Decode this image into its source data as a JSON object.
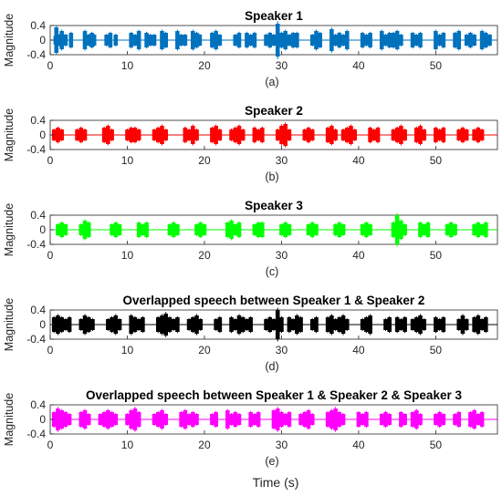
{
  "figure": {
    "shared_xlabel": "Time (s)"
  },
  "chart_data": [
    {
      "type": "line",
      "title": "Speaker 1",
      "ylabel": "Magnitude",
      "caption": "(a)",
      "color": "#0072BD",
      "xlim": [
        0,
        58
      ],
      "ylim": [
        -0.4,
        0.4
      ],
      "xticks": [
        0,
        10,
        20,
        30,
        40,
        50
      ],
      "yticks": [
        0.4,
        0,
        -0.4
      ],
      "ytick_labels": [
        "0.4",
        "0",
        "-0.4"
      ],
      "series": [
        {
          "x": [
            0.7,
            0.8,
            1.2,
            1.5,
            2,
            2.7,
            4.5,
            5,
            5.4,
            5.7,
            7.3,
            7.8,
            8.5,
            10.5,
            11,
            11.5,
            12.5,
            13,
            13.5,
            14.5,
            15,
            16.5,
            17,
            17.5,
            18.5,
            19,
            19.4,
            21,
            21.5,
            22,
            24,
            24.5,
            25.5,
            26,
            26.5,
            28,
            28.5,
            29,
            29.5,
            30,
            30.5,
            31,
            31.5,
            32,
            34,
            34.5,
            35,
            36.5,
            37,
            37.5,
            38,
            38.5,
            40.5,
            41,
            41.5,
            43,
            43.5,
            44,
            44.5,
            45,
            45.5,
            47,
            47.5,
            48,
            50,
            50.5,
            51,
            52.5,
            53,
            54,
            54.5,
            55,
            56,
            56.5,
            57
          ],
          "y": [
            0.12,
            0.35,
            0.15,
            0.25,
            0.15,
            0.2,
            0.25,
            0.15,
            0.2,
            0.15,
            0.15,
            0.2,
            0.15,
            0.2,
            0.15,
            0.25,
            0.2,
            0.15,
            0.15,
            0.25,
            0.2,
            0.25,
            0.15,
            0.15,
            0.25,
            0.2,
            0.15,
            0.2,
            0.25,
            0.15,
            0.15,
            0.2,
            0.2,
            0.15,
            0.2,
            0.15,
            0.2,
            0.15,
            0.45,
            0.2,
            0.25,
            0.15,
            0.2,
            0.2,
            0.15,
            0.25,
            0.2,
            0.3,
            0.15,
            0.2,
            0.15,
            0.25,
            0.2,
            0.15,
            0.2,
            0.25,
            0.15,
            0.2,
            0.2,
            0.25,
            0.15,
            0.2,
            0.15,
            0.2,
            0.25,
            0.15,
            0.2,
            0.2,
            0.25,
            0.15,
            0.2,
            0.15,
            0.25,
            0.2,
            0.15
          ]
        }
      ]
    },
    {
      "type": "line",
      "title": "Speaker 2",
      "ylabel": "Magnitude",
      "caption": "(b)",
      "color": "#FF0000",
      "xlim": [
        0,
        58
      ],
      "ylim": [
        -0.4,
        0.4
      ],
      "xticks": [
        0,
        10,
        20,
        30,
        40,
        50
      ],
      "yticks": [
        0.4,
        0,
        -0.4
      ],
      "ytick_labels": [
        "0.4",
        "0",
        "-0.4"
      ],
      "series": [
        {
          "x": [
            0.5,
            1,
            1.5,
            3.5,
            4,
            4.5,
            7,
            7.5,
            8,
            10,
            10.5,
            11,
            11.5,
            13.5,
            14,
            14.5,
            15,
            17.5,
            18,
            18.5,
            19,
            21,
            21.5,
            22,
            23.5,
            24,
            24.5,
            25,
            26.5,
            27,
            27.5,
            29.5,
            30,
            30.5,
            31,
            33,
            33.5,
            34,
            36,
            36.5,
            37,
            38,
            38.5,
            39,
            39.5,
            41.5,
            42,
            42.5,
            44.5,
            45,
            45.5,
            46,
            47.5,
            48,
            48.5,
            50,
            50.5,
            51,
            53,
            53.5,
            54,
            55,
            55.5,
            56
          ],
          "y": [
            0.15,
            0.2,
            0.15,
            0.15,
            0.2,
            0.15,
            0.2,
            0.25,
            0.15,
            0.15,
            0.2,
            0.2,
            0.15,
            0.15,
            0.2,
            0.25,
            0.15,
            0.2,
            0.15,
            0.25,
            0.15,
            0.2,
            0.25,
            0.15,
            0.15,
            0.2,
            0.25,
            0.15,
            0.2,
            0.15,
            0.2,
            0.15,
            0.25,
            0.3,
            0.15,
            0.15,
            0.2,
            0.15,
            0.2,
            0.25,
            0.15,
            0.15,
            0.2,
            0.25,
            0.15,
            0.2,
            0.15,
            0.2,
            0.15,
            0.2,
            0.25,
            0.15,
            0.2,
            0.25,
            0.15,
            0.2,
            0.15,
            0.2,
            0.15,
            0.2,
            0.15,
            0.15,
            0.2,
            0.15
          ]
        }
      ]
    },
    {
      "type": "line",
      "title": "Speaker 3",
      "ylabel": "Magnitude",
      "caption": "(c)",
      "color": "#00FF00",
      "xlim": [
        0,
        58
      ],
      "ylim": [
        -0.4,
        0.4
      ],
      "xticks": [
        0,
        10,
        20,
        30,
        40,
        50
      ],
      "yticks": [
        0.4,
        0,
        -0.4
      ],
      "ytick_labels": [
        "0.4",
        "0",
        "-0.4"
      ],
      "series": [
        {
          "x": [
            1,
            1.5,
            2,
            4,
            4.5,
            5,
            8,
            8.5,
            9,
            11.5,
            12,
            12.5,
            15.5,
            16,
            16.5,
            19,
            19.5,
            20,
            23,
            23.5,
            24,
            24.5,
            26.5,
            27,
            27.5,
            30,
            30.5,
            31,
            33.5,
            34,
            34.5,
            37,
            37.5,
            38,
            40.5,
            41,
            41.5,
            44.5,
            45,
            45.5,
            46,
            48,
            48.5,
            49,
            51.5,
            52,
            52.5,
            55,
            55.5,
            56,
            56.5
          ],
          "y": [
            0.15,
            0.2,
            0.15,
            0.15,
            0.25,
            0.2,
            0.15,
            0.2,
            0.15,
            0.2,
            0.15,
            0.2,
            0.15,
            0.2,
            0.15,
            0.15,
            0.2,
            0.15,
            0.2,
            0.25,
            0.15,
            0.2,
            0.15,
            0.2,
            0.2,
            0.15,
            0.2,
            0.15,
            0.15,
            0.2,
            0.15,
            0.15,
            0.2,
            0.15,
            0.15,
            0.2,
            0.15,
            0.2,
            0.4,
            0.25,
            0.15,
            0.2,
            0.15,
            0.2,
            0.15,
            0.2,
            0.15,
            0.15,
            0.2,
            0.15,
            0.2
          ]
        }
      ]
    },
    {
      "type": "line",
      "title": "Overlapped speech between Speaker 1 & Speaker 2",
      "ylabel": "Magnitude",
      "caption": "(d)",
      "color": "#000000",
      "xlim": [
        0,
        58
      ],
      "ylim": [
        -0.4,
        0.4
      ],
      "xticks": [
        0,
        10,
        20,
        30,
        40,
        50
      ],
      "yticks": [
        0.4,
        0,
        -0.4
      ],
      "ytick_labels": [
        "0.4",
        "0",
        "-0.4"
      ],
      "series": [
        {
          "x": [
            0.5,
            1,
            1.5,
            2,
            2.5,
            4,
            4.5,
            5,
            5.5,
            7.5,
            8,
            8.5,
            9,
            10.5,
            11,
            11.5,
            12,
            14,
            14.5,
            15,
            15.5,
            16,
            16.5,
            18,
            18.5,
            19,
            19.5,
            21.5,
            22,
            23.5,
            24,
            24.5,
            25,
            25.5,
            26,
            28,
            28.5,
            29,
            29.5,
            30,
            31,
            31.5,
            32,
            32.5,
            34,
            34.5,
            36,
            36.5,
            37,
            37.5,
            38,
            38.5,
            40.5,
            41,
            41.5,
            43.5,
            44,
            45,
            45.5,
            46,
            47,
            47.5,
            48,
            48.5,
            50,
            50.5,
            51,
            53,
            53.5,
            54,
            55,
            55.5,
            56,
            56.5
          ],
          "y": [
            0.2,
            0.25,
            0.2,
            0.15,
            0.2,
            0.15,
            0.25,
            0.2,
            0.15,
            0.15,
            0.2,
            0.25,
            0.15,
            0.25,
            0.2,
            0.15,
            0.2,
            0.2,
            0.25,
            0.3,
            0.2,
            0.15,
            0.2,
            0.15,
            0.2,
            0.25,
            0.15,
            0.15,
            0.2,
            0.2,
            0.15,
            0.25,
            0.2,
            0.15,
            0.2,
            0.15,
            0.2,
            0.15,
            0.4,
            0.2,
            0.2,
            0.15,
            0.25,
            0.2,
            0.15,
            0.2,
            0.2,
            0.25,
            0.15,
            0.2,
            0.25,
            0.15,
            0.15,
            0.2,
            0.25,
            0.15,
            0.2,
            0.2,
            0.15,
            0.2,
            0.15,
            0.2,
            0.25,
            0.15,
            0.2,
            0.15,
            0.2,
            0.15,
            0.25,
            0.15,
            0.2,
            0.25,
            0.15,
            0.2
          ]
        }
      ]
    },
    {
      "type": "line",
      "title": "Overlapped speech between Speaker 1 & Speaker 2 & Speaker 3",
      "ylabel": "Magnitude",
      "caption": "(e)",
      "color": "#FF00FF",
      "xlim": [
        0,
        58
      ],
      "ylim": [
        -0.4,
        0.4
      ],
      "xticks": [
        0,
        10,
        20,
        30,
        40,
        50
      ],
      "yticks": [
        0.4,
        0,
        -0.4
      ],
      "ytick_labels": [
        "0.4",
        "0",
        "-0.4"
      ],
      "series": [
        {
          "x": [
            0.5,
            1,
            1.5,
            2,
            2.5,
            4,
            4.5,
            5,
            6.5,
            7,
            7.5,
            8,
            8.5,
            10,
            10.5,
            11,
            11.5,
            13.5,
            14,
            14.5,
            15,
            17,
            17.5,
            18,
            18.5,
            19,
            21,
            21.5,
            23,
            23.5,
            24,
            24.5,
            26,
            26.5,
            27,
            29,
            29.5,
            30,
            30.5,
            31,
            32.5,
            33,
            33.5,
            34,
            36,
            36.5,
            37,
            37.5,
            38,
            40,
            40.5,
            41,
            43,
            43.5,
            44,
            45.5,
            46,
            47,
            47.5,
            48,
            50,
            50.5,
            51,
            52.5,
            53,
            54.5,
            55,
            55.5,
            56
          ],
          "y": [
            0.2,
            0.3,
            0.25,
            0.2,
            0.15,
            0.2,
            0.25,
            0.15,
            0.15,
            0.2,
            0.25,
            0.2,
            0.15,
            0.15,
            0.25,
            0.3,
            0.2,
            0.15,
            0.2,
            0.25,
            0.15,
            0.2,
            0.25,
            0.15,
            0.2,
            0.15,
            0.15,
            0.2,
            0.25,
            0.15,
            0.2,
            0.15,
            0.2,
            0.15,
            0.2,
            0.25,
            0.3,
            0.2,
            0.15,
            0.2,
            0.15,
            0.2,
            0.25,
            0.15,
            0.2,
            0.25,
            0.3,
            0.2,
            0.15,
            0.2,
            0.15,
            0.2,
            0.15,
            0.2,
            0.15,
            0.2,
            0.15,
            0.2,
            0.25,
            0.15,
            0.15,
            0.2,
            0.15,
            0.15,
            0.2,
            0.2,
            0.25,
            0.15,
            0.2
          ]
        }
      ]
    }
  ]
}
